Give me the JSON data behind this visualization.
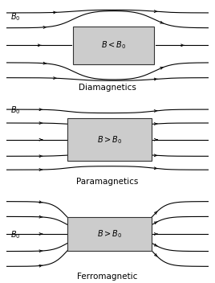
{
  "bg_color": "#ffffff",
  "box_color": "#cccccc",
  "box_edge_color": "#333333",
  "line_color": "#000000",
  "panels": [
    {
      "label": "Diamagnetics",
      "box_label": "B < B_0",
      "type": "diamagnetic"
    },
    {
      "label": "Paramagnetics",
      "box_label": "B > B_0",
      "type": "paramagnetic"
    },
    {
      "label": "Ferromagnetic",
      "box_label": "B > B_0",
      "type": "ferromagnetic"
    }
  ],
  "figsize": [
    2.68,
    3.52
  ],
  "dpi": 100
}
